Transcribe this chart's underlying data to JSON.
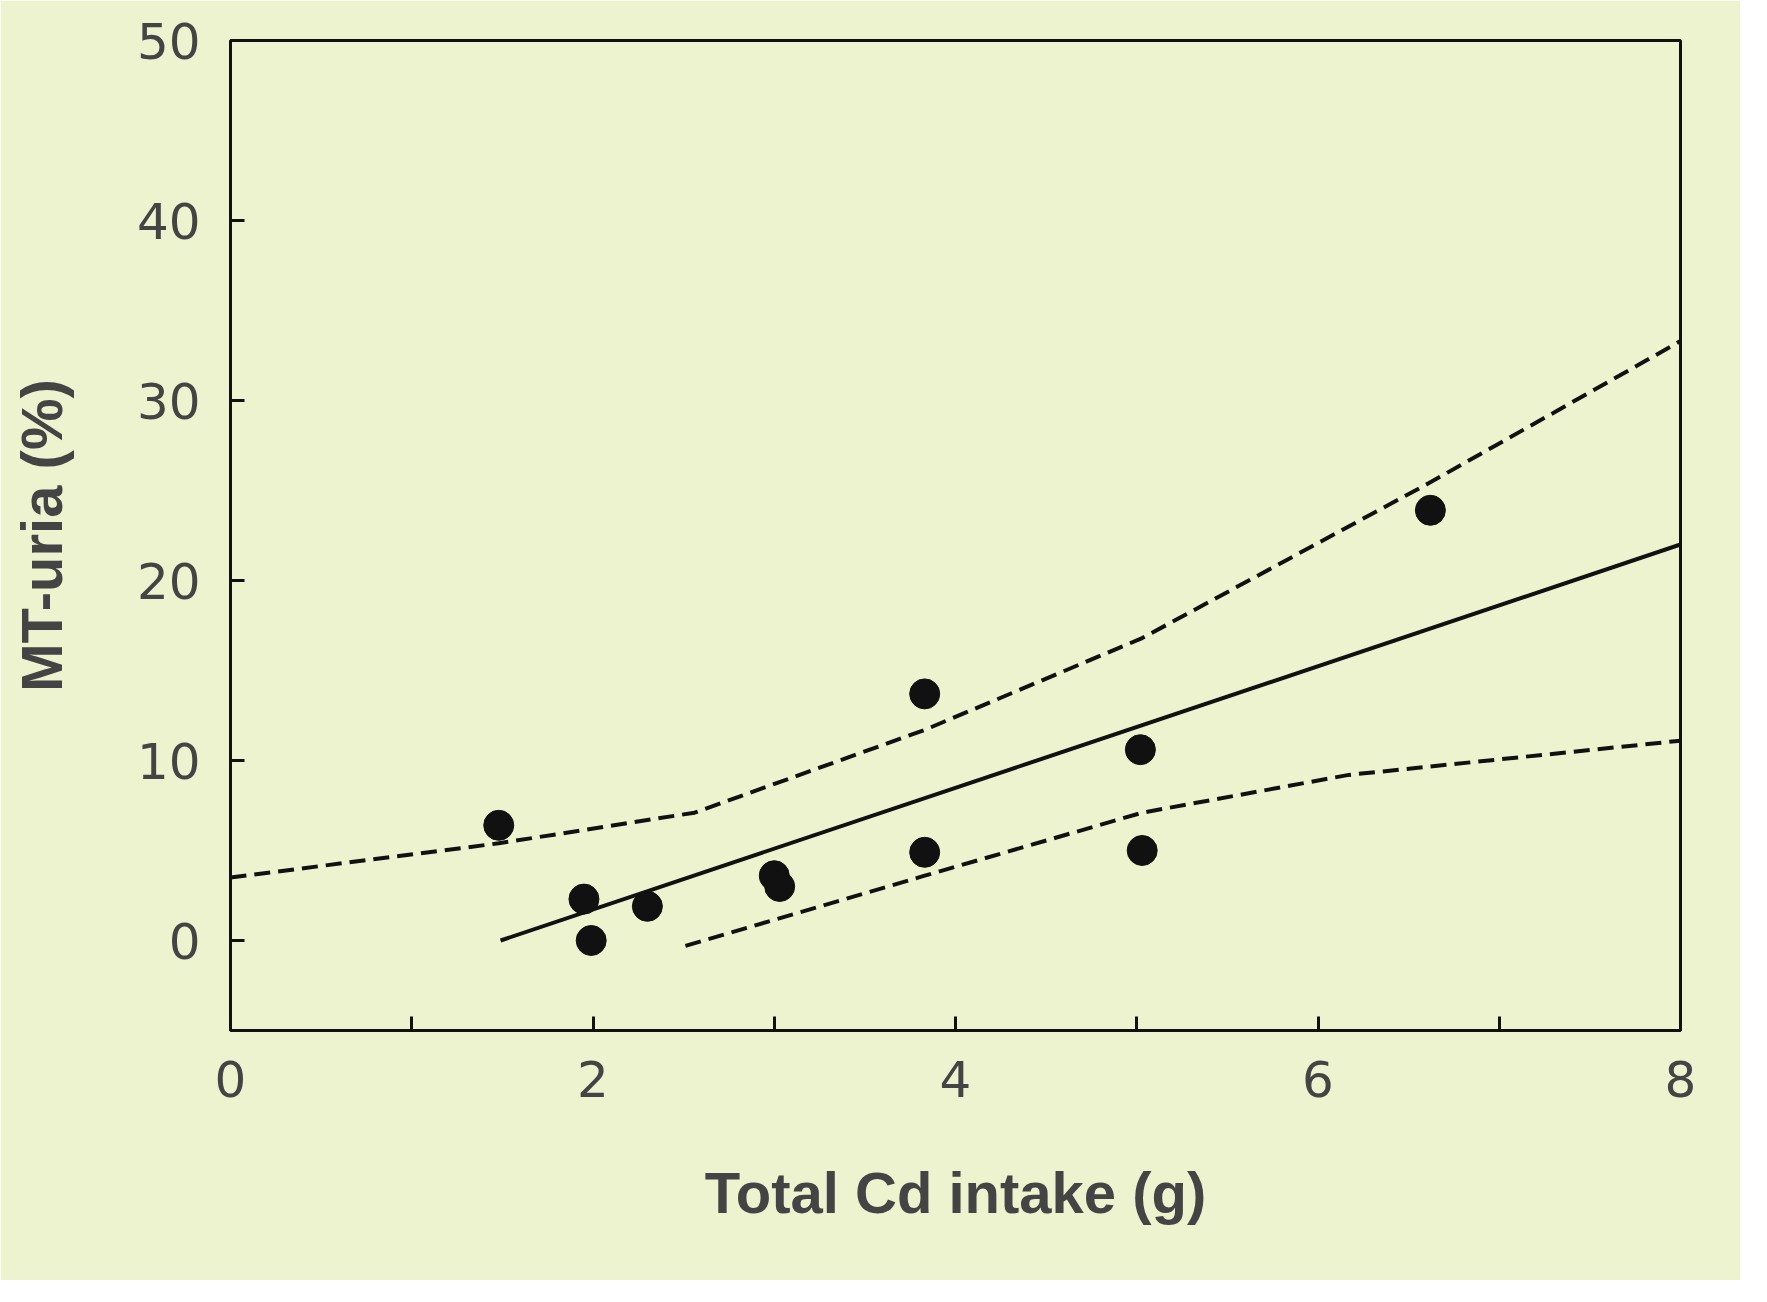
{
  "chart_data": {
    "type": "scatter",
    "xlabel": "Total Cd intake (g)",
    "ylabel": "MT-uria (%)",
    "xlim": [
      0,
      8
    ],
    "ylim": [
      -5,
      50
    ],
    "xticks": [
      0,
      {
        "value": 1,
        "label": null
      },
      2,
      {
        "value": 3,
        "label": null
      },
      4,
      {
        "value": 5,
        "label": null
      },
      6,
      {
        "value": 7,
        "label": null
      },
      8
    ],
    "yticks": [
      0,
      10,
      20,
      30,
      40,
      50
    ],
    "grid": false,
    "series": [
      {
        "marker": "circle",
        "color": "#111111",
        "x": [
          1.48,
          1.95,
          1.99,
          2.3,
          3.0,
          3.03,
          3.83,
          3.83,
          5.02,
          5.03,
          6.62
        ],
        "values": [
          6.4,
          2.3,
          0,
          1.9,
          3.6,
          3.0,
          13.7,
          4.9,
          10.6,
          5.0,
          23.9
        ]
      },
      {
        "type": "line",
        "color": "#111111",
        "line_style": "solid",
        "x": [
          1.49,
          8
        ],
        "values": [
          0,
          22.0
        ]
      },
      {
        "type": "line",
        "color": "#111111",
        "line_style": "dashed",
        "x": [
          0,
          1.48,
          2.56,
          3.83,
          5.03,
          6.61,
          8
        ],
        "values": [
          3.5,
          5.4,
          7.1,
          11.7,
          16.8,
          25.4,
          33.3
        ]
      },
      {
        "type": "line",
        "color": "#111111",
        "line_style": "dashed",
        "x": [
          2.51,
          3.83,
          5.03,
          6.17,
          8
        ],
        "values": [
          -0.3,
          3.6,
          7.1,
          9.2,
          11.1
        ]
      }
    ]
  }
}
